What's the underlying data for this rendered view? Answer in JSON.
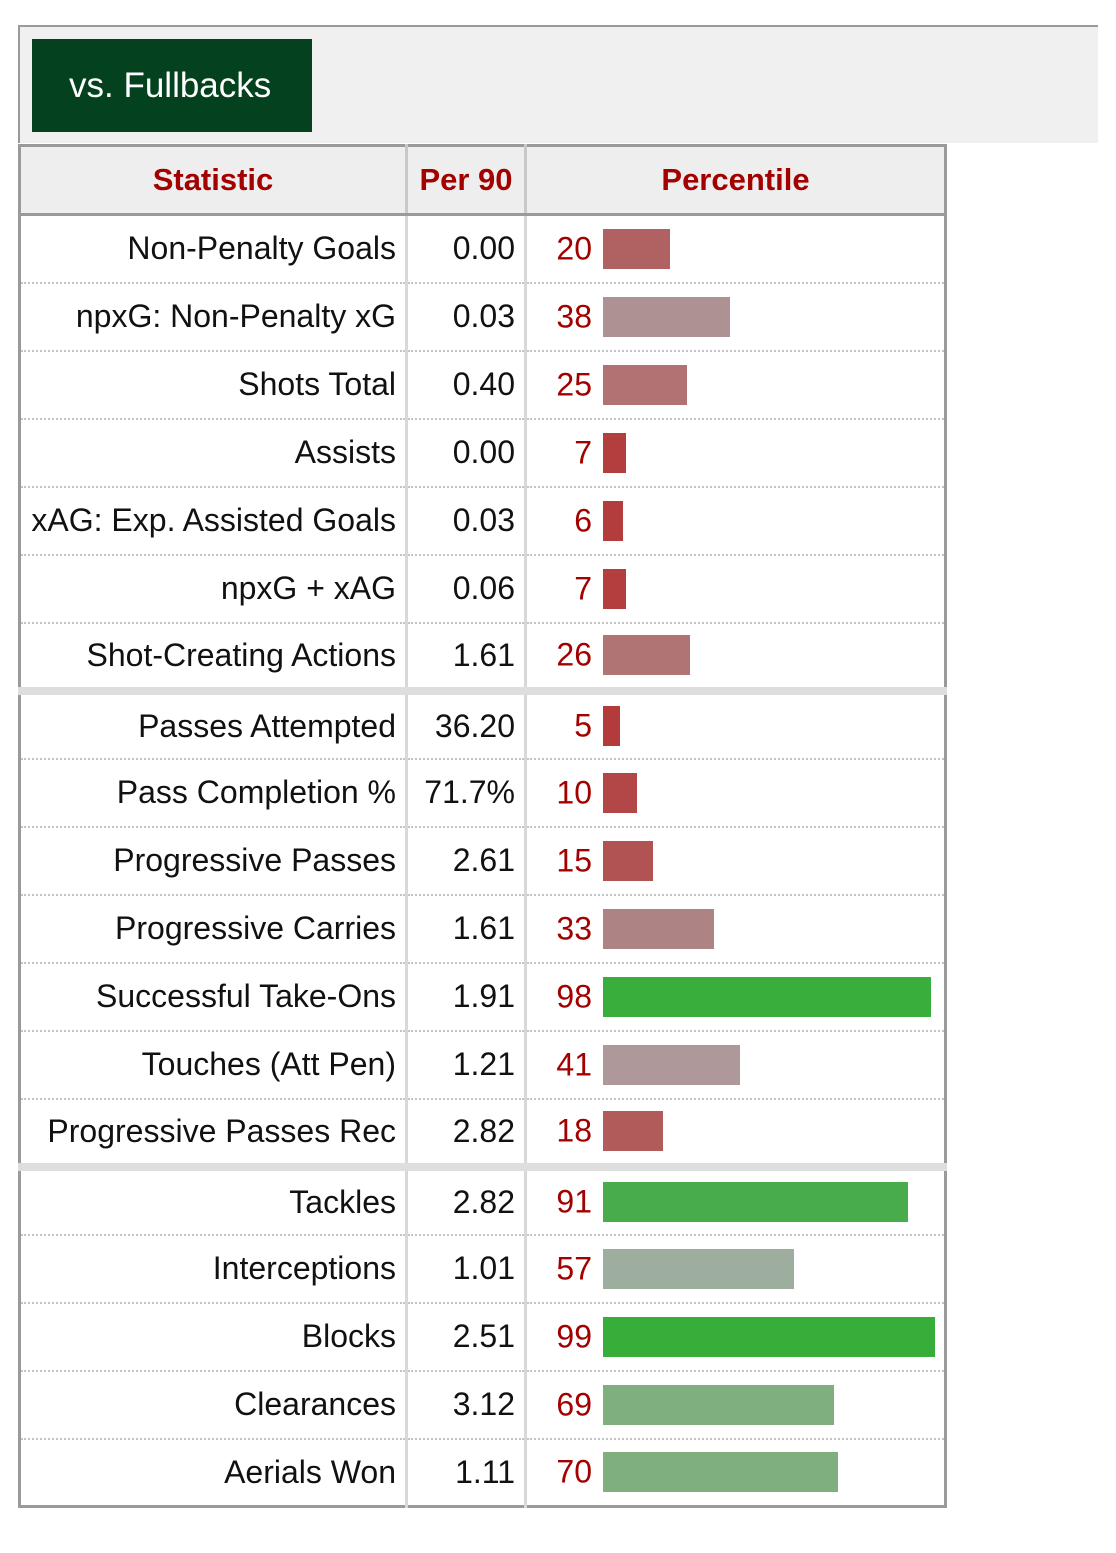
{
  "tabs": [
    {
      "label": "vs. Fullbacks",
      "active": true
    }
  ],
  "table": {
    "headers": {
      "statistic": "Statistic",
      "per90": "Per 90",
      "percentile": "Percentile"
    },
    "groups": [
      [
        {
          "stat": "Non-Penalty Goals",
          "per90": "0.00",
          "percentile": 20,
          "color": "#b06161"
        },
        {
          "stat": "npxG: Non-Penalty xG",
          "per90": "0.03",
          "percentile": 38,
          "color": "#ae9192"
        },
        {
          "stat": "Shots Total",
          "per90": "0.40",
          "percentile": 25,
          "color": "#b07272"
        },
        {
          "stat": "Assists",
          "per90": "0.00",
          "percentile": 7,
          "color": "#b33e3e"
        },
        {
          "stat": "xAG: Exp. Assisted Goals",
          "per90": "0.03",
          "percentile": 6,
          "color": "#b33c3c"
        },
        {
          "stat": "npxG + xAG",
          "per90": "0.06",
          "percentile": 7,
          "color": "#b33e3e"
        },
        {
          "stat": "Shot-Creating Actions",
          "per90": "1.61",
          "percentile": 26,
          "color": "#b07474"
        }
      ],
      [
        {
          "stat": "Passes Attempted",
          "per90": "36.20",
          "percentile": 5,
          "color": "#b43b3b"
        },
        {
          "stat": "Pass Completion %",
          "per90": "71.7%",
          "percentile": 10,
          "color": "#b34747"
        },
        {
          "stat": "Progressive Passes",
          "per90": "2.61",
          "percentile": 15,
          "color": "#b15353"
        },
        {
          "stat": "Progressive Carries",
          "per90": "1.61",
          "percentile": 33,
          "color": "#ae8384"
        },
        {
          "stat": "Successful Take-Ons",
          "per90": "1.91",
          "percentile": 98,
          "color": "#3aae3c"
        },
        {
          "stat": "Touches (Att Pen)",
          "per90": "1.21",
          "percentile": 41,
          "color": "#ae9899"
        },
        {
          "stat": "Progressive Passes Rec",
          "per90": "2.82",
          "percentile": 18,
          "color": "#b15b5b"
        }
      ],
      [
        {
          "stat": "Tackles",
          "per90": "2.82",
          "percentile": 91,
          "color": "#48ac4a"
        },
        {
          "stat": "Interceptions",
          "per90": "1.01",
          "percentile": 57,
          "color": "#9eae9e"
        },
        {
          "stat": "Blocks",
          "per90": "2.51",
          "percentile": 99,
          "color": "#38ae3a"
        },
        {
          "stat": "Clearances",
          "per90": "3.12",
          "percentile": 69,
          "color": "#7fae7f"
        },
        {
          "stat": "Aerials Won",
          "per90": "1.11",
          "percentile": 70,
          "color": "#7fae7f"
        }
      ]
    ]
  }
}
